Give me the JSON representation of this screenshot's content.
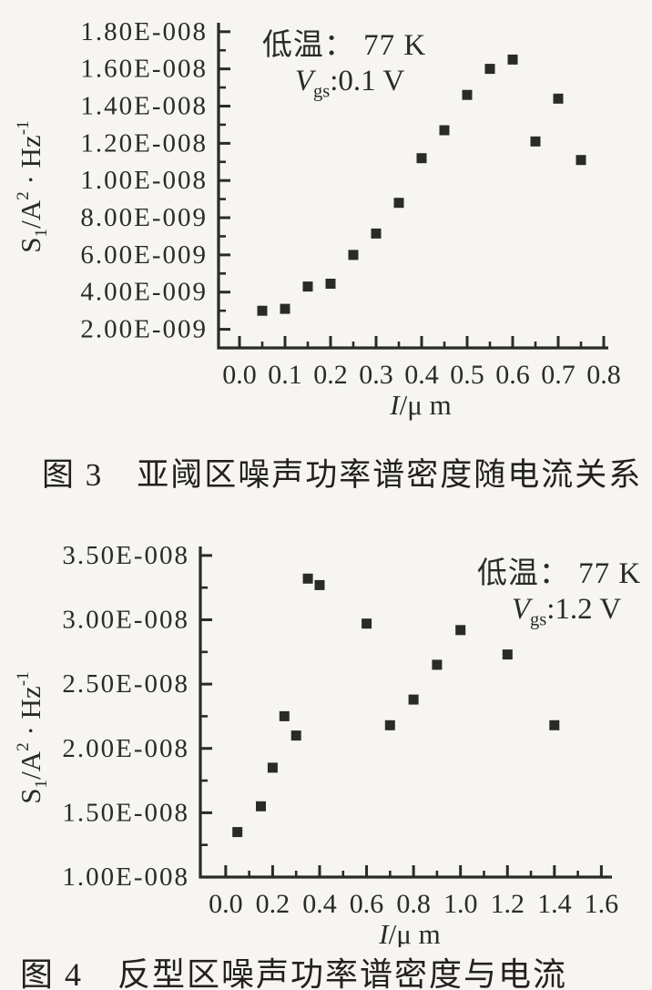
{
  "page": {
    "background": "#f6f5f2",
    "ink": "#2a2a28"
  },
  "figure3": {
    "caption": "图 3　亚阈区噪声功率谱密度随电流关系"
  },
  "figure4": {
    "caption": "图 4　反型区噪声功率谱密度与电流"
  },
  "chart_data": [
    {
      "type": "scatter",
      "figure_label": "图3",
      "legend": {
        "line1": "低温： 77 K",
        "var": "V",
        "var_sub": "gs",
        "line2_rest": ":0.1 V"
      },
      "xlabel_parts": [
        {
          "t": "I",
          "italic": true
        },
        {
          "t": "/μ m"
        }
      ],
      "ylabel_parts": [
        {
          "t": "S"
        },
        {
          "t": "1",
          "script": "sub"
        },
        {
          "t": "/A"
        },
        {
          "t": "2",
          "script": "sup"
        },
        {
          "t": " · Hz"
        },
        {
          "t": "-1",
          "script": "sup"
        }
      ],
      "xlim": [
        -0.046,
        0.81
      ],
      "ylim": [
        1e-09,
        1.848e-08
      ],
      "x_major_ticks": [
        0.0,
        0.1,
        0.2,
        0.3,
        0.4,
        0.5,
        0.6,
        0.7,
        0.8
      ],
      "x_tick_labels": [
        "0.0",
        "0.1",
        "0.2",
        "0.3",
        "0.4",
        "0.5",
        "0.6",
        "0.7",
        "0.8"
      ],
      "y_major_ticks": [
        2e-09,
        4e-09,
        6e-09,
        8e-09,
        1e-08,
        1.2e-08,
        1.4e-08,
        1.6e-08,
        1.8e-08
      ],
      "y_tick_labels": [
        "2.00E-009",
        "4.00E-009",
        "6.00E-009",
        "8.00E-009",
        "1.00E-008",
        "1.20E-008",
        "1.40E-008",
        "1.60E-008",
        "1.80E-008"
      ],
      "grid": false,
      "legend_position": "top-left-inside",
      "marker": "filled-square",
      "x": [
        0.05,
        0.1,
        0.15,
        0.2,
        0.25,
        0.3,
        0.35,
        0.4,
        0.45,
        0.5,
        0.55,
        0.6,
        0.65,
        0.7,
        0.75
      ],
      "y": [
        3e-09,
        3.1e-09,
        4.3e-09,
        4.45e-09,
        6e-09,
        7.15e-09,
        8.8e-09,
        1.12e-08,
        1.27e-08,
        1.46e-08,
        1.6e-08,
        1.65e-08,
        1.21e-08,
        1.44e-08,
        1.11e-08
      ]
    },
    {
      "type": "scatter",
      "figure_label": "图4",
      "legend": {
        "line1": "低温： 77 K",
        "var": "V",
        "var_sub": "gs",
        "line2_rest": ":1.2 V"
      },
      "xlabel_parts": [
        {
          "t": "I",
          "italic": true
        },
        {
          "t": "/μ m"
        }
      ],
      "ylabel_parts": [
        {
          "t": "S"
        },
        {
          "t": "1",
          "script": "sub"
        },
        {
          "t": "/A"
        },
        {
          "t": "2",
          "script": "sup"
        },
        {
          "t": " · Hz"
        },
        {
          "t": "-1",
          "script": "sup"
        }
      ],
      "xlim": [
        -0.108,
        1.645
      ],
      "ylim": [
        1e-08,
        3.57e-08
      ],
      "x_major_ticks": [
        0.0,
        0.2,
        0.4,
        0.6,
        0.8,
        1.0,
        1.2,
        1.4,
        1.6
      ],
      "x_tick_labels": [
        "0.0",
        "0.2",
        "0.4",
        "0.6",
        "0.8",
        "1.0",
        "1.2",
        "1.4",
        "1.6"
      ],
      "y_major_ticks": [
        1e-08,
        1.5e-08,
        2e-08,
        2.5e-08,
        3e-08,
        3.5e-08
      ],
      "y_tick_labels": [
        "1.00E-008",
        "1.50E-008",
        "2.00E-008",
        "2.50E-008",
        "3.00E-008",
        "3.50E-008"
      ],
      "grid": false,
      "legend_position": "top-right-inside",
      "marker": "filled-square",
      "x": [
        0.05,
        0.15,
        0.2,
        0.25,
        0.3,
        0.35,
        0.4,
        0.6,
        0.7,
        0.8,
        0.9,
        1.0,
        1.2,
        1.4
      ],
      "y": [
        1.35e-08,
        1.55e-08,
        1.85e-08,
        2.25e-08,
        2.1e-08,
        3.32e-08,
        3.27e-08,
        2.97e-08,
        2.18e-08,
        2.38e-08,
        2.65e-08,
        2.92e-08,
        2.73e-08,
        2.18e-08
      ]
    }
  ]
}
